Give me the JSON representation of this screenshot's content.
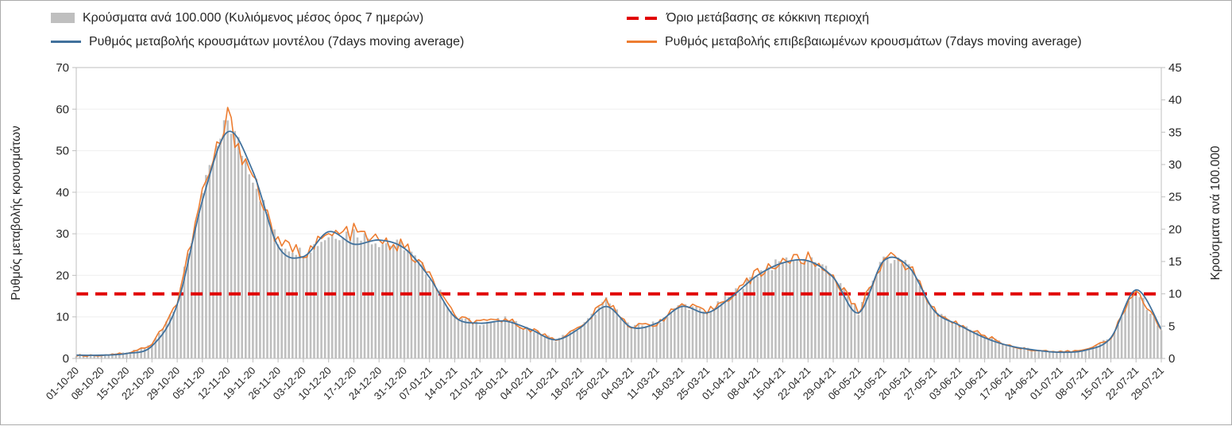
{
  "legend": {
    "bars_label": "Κρούσματα ανά 100.000 (Κυλιόμενος μέσος όρος 7 ημερών)",
    "threshold_label": "Όριο μετάβασης σε κόκκινη περιοχή",
    "model_label": "Ρυθμός μεταβολής κρουσμάτων μοντέλου (7days moving average)",
    "confirmed_label": "Ρυθμός μεταβολής επιβεβαιωμένων κρουσμάτων (7days moving average)"
  },
  "chart_data": {
    "type": "bar+line",
    "categories": [
      "01-10-20",
      "08-10-20",
      "15-10-20",
      "22-10-20",
      "29-10-20",
      "05-11-20",
      "12-11-20",
      "19-11-20",
      "26-11-20",
      "03-12-20",
      "10-12-20",
      "17-12-20",
      "24-12-20",
      "31-12-20",
      "07-01-21",
      "14-01-21",
      "21-01-21",
      "28-01-21",
      "04-02-21",
      "11-02-21",
      "18-02-21",
      "25-02-21",
      "04-03-21",
      "11-03-21",
      "18-03-21",
      "25-03-21",
      "01-04-21",
      "08-04-21",
      "15-04-21",
      "22-04-21",
      "29-04-21",
      "06-05-21",
      "13-05-21",
      "20-05-21",
      "27-05-21",
      "03-06-21",
      "10-06-21",
      "17-06-21",
      "24-06-21",
      "01-07-21",
      "08-07-21",
      "15-07-21",
      "22-07-21",
      "29-07-21"
    ],
    "series": [
      {
        "name": "Κρούσματα ανά 100.000 (Κυλιόμενος μέσος όρος 7 ημερών)",
        "type": "bar",
        "axis": "right",
        "values": [
          0.5,
          0.5,
          0.8,
          2.1,
          8.7,
          25.4,
          37,
          28.3,
          17.7,
          16.4,
          19,
          19.6,
          18,
          17.4,
          12.9,
          6.4,
          5.5,
          6.1,
          4.5,
          2.9,
          4.8,
          9,
          4.8,
          5.5,
          8.4,
          7.1,
          10,
          13.2,
          15.1,
          15.4,
          12.9,
          7.1,
          15.8,
          14.5,
          7.4,
          5.1,
          3.5,
          1.9,
          1.3,
          1,
          1.3,
          3.2,
          10.6,
          4.5
        ]
      },
      {
        "name": "Ρυθμός μεταβολής κρουσμάτων μοντέλου (7days moving average)",
        "type": "line",
        "axis": "left",
        "values": [
          0.8,
          0.8,
          1.2,
          3,
          13,
          38,
          54.5,
          45,
          27,
          24.5,
          30.5,
          27.5,
          28.5,
          26.5,
          19.5,
          10,
          8.5,
          9,
          7,
          4.5,
          7.5,
          12.5,
          7.5,
          8.5,
          12.5,
          11,
          15,
          20,
          23,
          23.5,
          19.5,
          11,
          23.5,
          22,
          11.5,
          8,
          5,
          3,
          2,
          1.5,
          2,
          5,
          16.5,
          7
        ]
      },
      {
        "name": "Ρυθμός μεταβολής επιβεβαιωμένων κρουσμάτων (7days moving average)",
        "type": "line",
        "axis": "left",
        "values": [
          0.7,
          0.8,
          1.3,
          3.2,
          13.5,
          39.5,
          57.5,
          44,
          27.5,
          25.5,
          29.5,
          30.5,
          28,
          27,
          20,
          10,
          8.5,
          9.5,
          7,
          4.5,
          7.5,
          14,
          7.5,
          8.5,
          13,
          11,
          15.5,
          20.5,
          23.5,
          24,
          20,
          11,
          24.5,
          22.5,
          11.5,
          8,
          5.5,
          3,
          2,
          1.5,
          2,
          5,
          16.5,
          7
        ]
      }
    ],
    "threshold": {
      "label": "Όριο μετάβασης σε κόκκινη περιοχή",
      "value": 10,
      "axis": "right"
    },
    "left_axis": {
      "title": "Ρυθμός μεταβολής κρουσμάτων",
      "min": 0,
      "max": 70,
      "step": 10
    },
    "right_axis": {
      "title": "Κρούσματα ανά 100.000",
      "min": 0,
      "max": 45,
      "step": 5
    },
    "grid": true,
    "legend_position": "top",
    "colors": {
      "bars": "#bfbfbf",
      "model": "#41719c",
      "confirmed": "#ed7d31",
      "threshold": "#e10000",
      "grid": "#efefef",
      "axis": "#bfbfbf",
      "text": "#262626"
    }
  }
}
